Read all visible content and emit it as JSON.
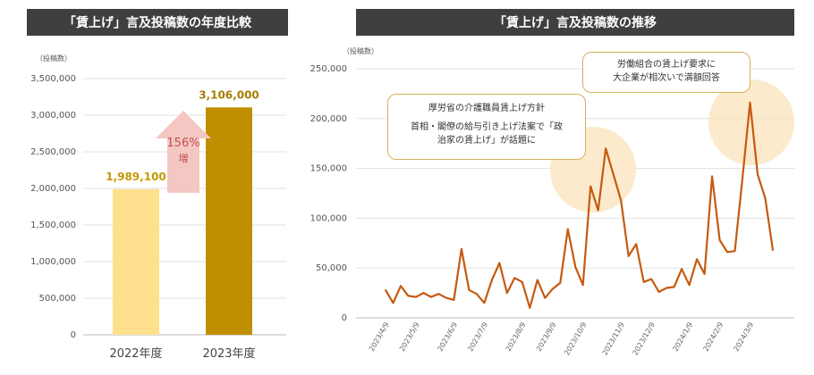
{
  "colors": {
    "title_bg": "#3f3f3f",
    "bar_2022": "#ffe08e",
    "bar_2023": "#bf8f00",
    "label_2022": "#c49a00",
    "label_2023": "#a57c00",
    "arrow": "#f4c7c3",
    "arrow_text": "#c0504d",
    "line": "#c55a11",
    "highlight": "#fbe5bf",
    "callout_border": "#d4b15a",
    "grid": "#e0e0e0"
  },
  "left_chart": {
    "title": "「賃上げ」言及投稿数の年度比較",
    "unit": "（投稿数）",
    "growth_label": "156%",
    "growth_suffix": "増"
  },
  "right_chart": {
    "title": "「賃上げ」言及投稿数の推移",
    "unit": "（投稿数）",
    "callout_1": {
      "line1": "厚労省の介護職員賃上げ方針",
      "line2": "首相・閣僚の給与引き上げ法案で「政",
      "line3": "治家の賃上げ」が話題に"
    },
    "callout_2": {
      "line1": "労働組合の賃上げ要求に",
      "line2": "大企業が相次いで満額回答"
    }
  },
  "chart_data": [
    {
      "type": "bar",
      "title": "「賃上げ」言及投稿数の年度比較",
      "ylabel": "（投稿数）",
      "categories": [
        "2022年度",
        "2023年度"
      ],
      "values": [
        1989100,
        3106000
      ],
      "value_labels": [
        "1,989,100",
        "3,106,000"
      ],
      "ylim": [
        0,
        3500000
      ],
      "yticks": [
        0,
        500000,
        1000000,
        1500000,
        2000000,
        2500000,
        3000000,
        3500000
      ],
      "ytick_labels": [
        "0",
        "500,000",
        "1,000,000",
        "1,500,000",
        "2,000,000",
        "2,500,000",
        "3,000,000",
        "3,500,000"
      ],
      "grid": true,
      "annotation": "156% 増"
    },
    {
      "type": "line",
      "title": "「賃上げ」言及投稿数の推移",
      "ylabel": "（投稿数）",
      "ylim": [
        0,
        250000
      ],
      "yticks": [
        0,
        50000,
        100000,
        150000,
        200000,
        250000
      ],
      "ytick_labels": [
        "0",
        "50,000",
        "100,000",
        "150,000",
        "200,000",
        "250,000"
      ],
      "grid": true,
      "x_tick_labels": [
        "2023/4/9",
        "2023/5/9",
        "2023/6/9",
        "2023/7/9",
        "2023/8/9",
        "2023/9/9",
        "2023/10/9",
        "2023/11/9",
        "2023/12/9",
        "2024/1/9",
        "2024/2/9",
        "2024/3/9"
      ],
      "values": [
        28000,
        15000,
        32000,
        22000,
        21000,
        25000,
        21000,
        24000,
        20000,
        18000,
        69000,
        28000,
        24000,
        15000,
        38000,
        55000,
        25000,
        40000,
        36000,
        10000,
        38000,
        20000,
        29000,
        35000,
        89000,
        51000,
        33000,
        132000,
        108000,
        170000,
        144000,
        118000,
        62000,
        74000,
        36000,
        39000,
        26000,
        30000,
        31000,
        49000,
        33000,
        59000,
        44000,
        142000,
        78000,
        66000,
        67000,
        140000,
        216000,
        144000,
        120000,
        68000
      ]
    }
  ]
}
